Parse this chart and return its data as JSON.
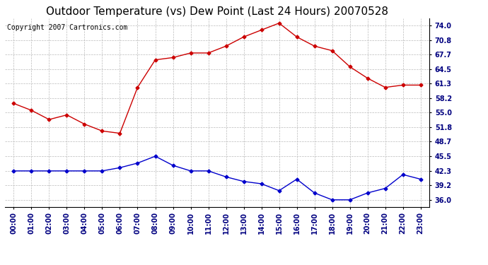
{
  "title": "Outdoor Temperature (vs) Dew Point (Last 24 Hours) 20070528",
  "copyright": "Copyright 2007 Cartronics.com",
  "hours": [
    "00:00",
    "01:00",
    "02:00",
    "03:00",
    "04:00",
    "05:00",
    "06:00",
    "07:00",
    "08:00",
    "09:00",
    "10:00",
    "11:00",
    "12:00",
    "13:00",
    "14:00",
    "15:00",
    "16:00",
    "17:00",
    "18:00",
    "19:00",
    "20:00",
    "21:00",
    "22:00",
    "23:00"
  ],
  "temp": [
    57.0,
    55.5,
    53.5,
    54.5,
    52.5,
    51.0,
    50.5,
    60.5,
    66.5,
    67.0,
    68.0,
    68.0,
    69.5,
    71.5,
    73.0,
    74.5,
    71.5,
    69.5,
    68.5,
    65.0,
    62.5,
    60.5,
    61.0,
    61.0
  ],
  "dew": [
    42.3,
    42.3,
    42.3,
    42.3,
    42.3,
    42.3,
    43.0,
    44.0,
    45.5,
    43.5,
    42.3,
    42.3,
    41.0,
    40.0,
    39.5,
    38.0,
    40.5,
    37.5,
    36.0,
    36.0,
    37.5,
    38.5,
    41.5,
    40.5
  ],
  "temp_color": "#cc0000",
  "dew_color": "#0000cc",
  "bg_color": "#ffffff",
  "plot_bg": "#ffffff",
  "grid_color": "#bbbbbb",
  "yticks": [
    36.0,
    39.2,
    42.3,
    45.5,
    48.7,
    51.8,
    55.0,
    58.2,
    61.3,
    64.5,
    67.7,
    70.8,
    74.0
  ],
  "ylim": [
    34.5,
    75.5
  ],
  "title_fontsize": 11,
  "copyright_fontsize": 7,
  "tick_fontsize": 7,
  "marker": "D",
  "marker_size": 2.5,
  "linewidth": 1.0
}
